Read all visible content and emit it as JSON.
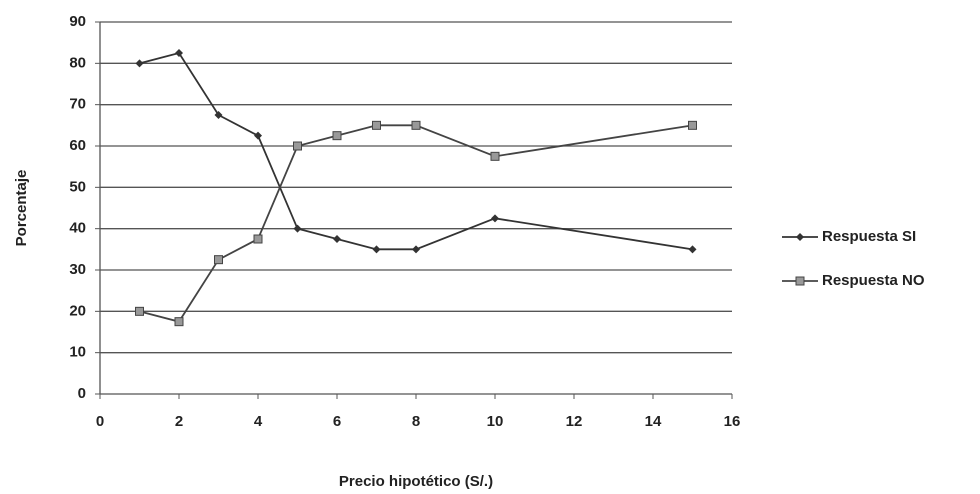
{
  "chart_data": {
    "type": "line",
    "x": [
      1,
      2,
      3,
      4,
      5,
      6,
      7,
      8,
      10,
      15
    ],
    "series": [
      {
        "name": "Respuesta SI",
        "color": "#333333",
        "marker": "diamond",
        "values": [
          80,
          82.5,
          67.5,
          62.5,
          40,
          37.5,
          35,
          35,
          42.5,
          35
        ]
      },
      {
        "name": "Respuesta NO",
        "color": "#444444",
        "marker": "square",
        "values": [
          20,
          17.5,
          32.5,
          37.5,
          60,
          62.5,
          65,
          65,
          57.5,
          65
        ]
      }
    ],
    "xlabel": "Precio hipotético (S/.)",
    "ylabel": "Porcentaje",
    "xlim": [
      0,
      16
    ],
    "xticks": [
      0,
      2,
      4,
      6,
      8,
      10,
      12,
      14,
      16
    ],
    "ylim": [
      0,
      90
    ],
    "yticks": [
      0,
      10,
      20,
      30,
      40,
      50,
      60,
      70,
      80,
      90
    ],
    "grid": true,
    "legend": "right"
  }
}
